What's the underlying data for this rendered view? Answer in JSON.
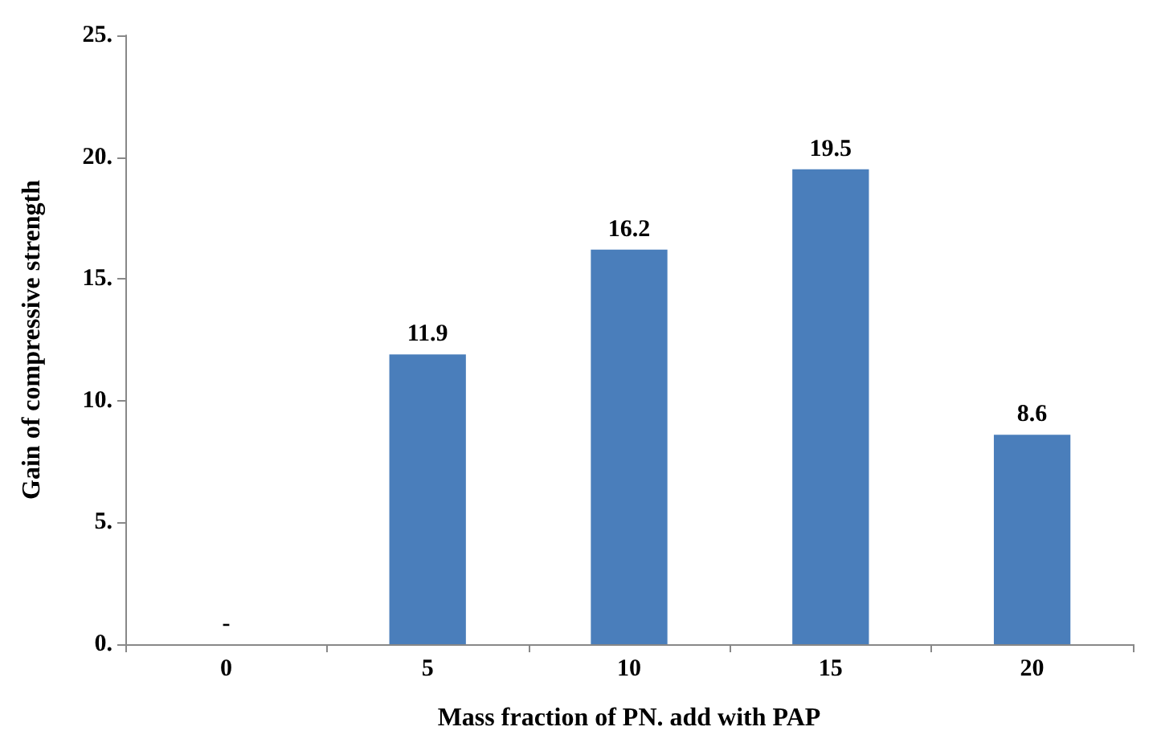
{
  "chart_data": {
    "type": "bar",
    "xlabel": "Mass fraction of PN. add with PAP",
    "ylabel": "Gain of compressive strength",
    "categories": [
      "0",
      "5",
      "10",
      "15",
      "20"
    ],
    "values": [
      0,
      11.9,
      16.2,
      19.5,
      8.6
    ],
    "value_labels": [
      "-",
      "11.9",
      "16.2",
      "19.5",
      "8.6"
    ],
    "color": "#4a7ebb",
    "ylim": [
      0,
      25
    ],
    "yticks": [
      {
        "value": 0,
        "label": "0."
      },
      {
        "value": 5,
        "label": "5."
      },
      {
        "value": 10,
        "label": "10."
      },
      {
        "value": 15,
        "label": "15."
      },
      {
        "value": 20,
        "label": "20."
      },
      {
        "value": 25,
        "label": "25."
      }
    ],
    "grid": false
  }
}
